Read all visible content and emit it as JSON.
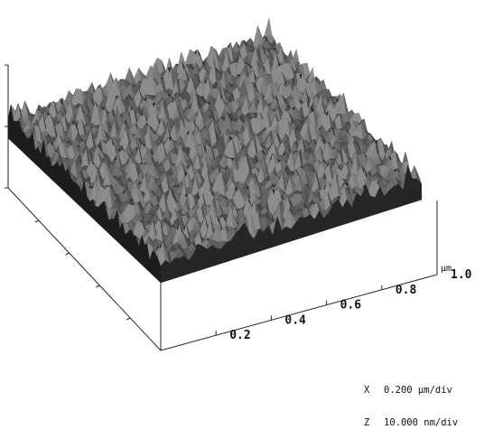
{
  "figure": {
    "type": "afm-3d-surface-plot",
    "x_axis": {
      "unit": "µm",
      "ticks": [
        "0.2",
        "0.4",
        "0.6",
        "0.8",
        "1.0"
      ]
    },
    "scale_legend": [
      {
        "axis": "X",
        "value": "0.200 µm/div"
      },
      {
        "axis": "Z",
        "value": "10.000 nm/div"
      }
    ],
    "colors": {
      "background": "#ffffff",
      "surface_dark": "#1e1e1e",
      "surface_light": "#8a8a8a",
      "axis": "#222222"
    }
  }
}
